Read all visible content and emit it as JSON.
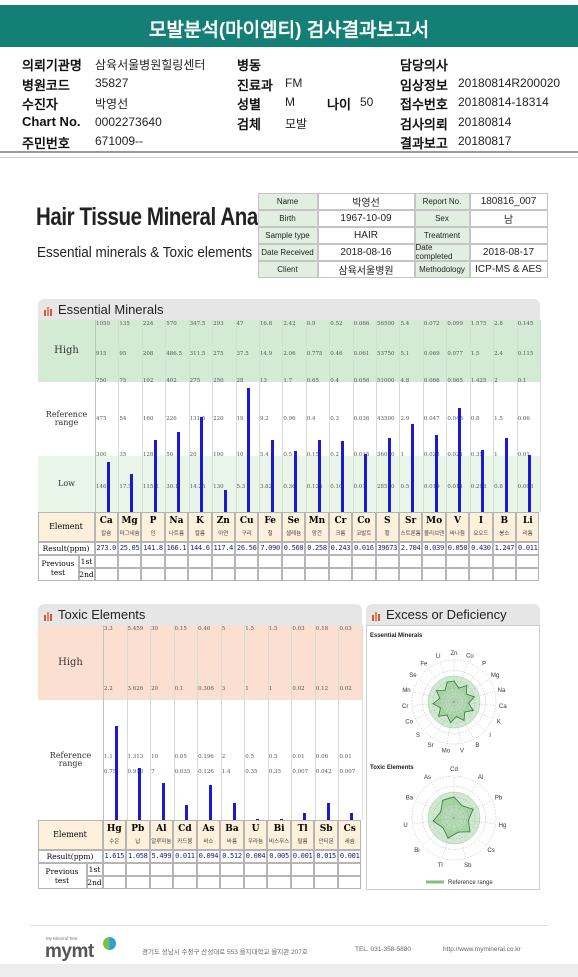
{
  "header": {
    "title": "모발분석(마이엠티) 검사결과보고서"
  },
  "info": [
    {
      "c1": {
        "label": "의뢰기관명",
        "value": "삼육서울병원힐링센터"
      },
      "c2": {
        "label": "병동"
      },
      "c3": {
        "label": "담당의사"
      }
    },
    {
      "c1": {
        "label": "병원코드",
        "value": "35827"
      },
      "c2": {
        "label": "진료과",
        "value": "FM"
      },
      "c3": {
        "label": "임상정보",
        "value": "20180814R200020"
      }
    },
    {
      "c1": {
        "label": "수진자",
        "value": "박영선"
      },
      "c2": {
        "label": "성별",
        "value": "M",
        "extra_label": "나이",
        "extra_value": "50"
      },
      "c3": {
        "label": "접수번호",
        "value": "20180814-18314"
      }
    },
    {
      "c1": {
        "label": "Chart No.",
        "value": "0002273640"
      },
      "c2": {
        "label": "검체",
        "value": "모발"
      },
      "c3": {
        "label": "검사의뢰",
        "value": "20180814"
      }
    },
    {
      "c1": {
        "label": "주민번호",
        "value": "671009--"
      },
      "c3": {
        "label": "결과보고",
        "value": "20180817"
      }
    }
  ],
  "report": {
    "title": "Hair Tissue Mineral Analysis",
    "subtitle": "Essential minerals & Toxic elements",
    "patient": [
      [
        "Name",
        "박영선",
        "Report No.",
        "180816_007"
      ],
      [
        "Birth",
        "1967-10-09",
        "Sex",
        "남"
      ],
      [
        "Sample type",
        "HAIR",
        "Treatment"
      ],
      [
        "Date Received",
        "2018-08-16",
        "Date completed",
        "2018-08-17"
      ],
      [
        "Client",
        "삼육서울병원",
        "Methodology",
        "ICP-MS & AES"
      ]
    ]
  },
  "essential": {
    "title": "Essential Minerals",
    "zones": [
      "High",
      "Reference range",
      "Low"
    ],
    "element_header": "Element",
    "result_header": "Result(ppm)",
    "previous_header": "Previous test",
    "previous_rows": [
      "1st",
      "2nd"
    ],
    "elements": [
      "Ca",
      "Mg",
      "P",
      "Na",
      "K",
      "Zn",
      "Cu",
      "Fe",
      "Se",
      "Mn",
      "Cr",
      "Co",
      "S",
      "Sr",
      "Mo",
      "V",
      "I",
      "B",
      "Li"
    ],
    "names": [
      "칼슘",
      "마그네슘",
      "인",
      "나트륨",
      "칼륨",
      "아연",
      "구리",
      "철",
      "셀레늄",
      "망간",
      "크롬",
      "코발트",
      "황",
      "스트론튬",
      "몰리브덴",
      "바나듐",
      "요오드",
      "붕소",
      "리튬"
    ],
    "values": [
      273,
      25.05,
      141.8,
      166.1,
      144.6,
      117.4,
      26.56,
      7.09,
      0.56,
      0.258,
      0.243,
      0.016,
      39673,
      2.704,
      0.039,
      0.05,
      0.43,
      1.247,
      0.011
    ],
    "value_labels": [
      "273.0",
      "25.05",
      "141.8",
      "166.1",
      "144.6",
      "117.4",
      "26.56",
      "7.090",
      "0.560",
      "0.258",
      "0.243",
      "0.016",
      "39673",
      "2.704",
      "0.039",
      "0.050",
      "0.430",
      "1.247",
      "0.011"
    ],
    "scale": [
      [
        1050,
        915,
        750,
        475,
        300,
        146
      ],
      [
        135,
        95,
        75,
        54,
        35,
        17.5
      ],
      [
        224,
        208,
        192,
        160,
        128,
        115.2
      ],
      [
        570,
        486.5,
        402,
        226,
        50,
        30.1
      ],
      [
        347.5,
        311.5,
        275,
        131.5,
        20,
        14.25
      ],
      [
        293,
        275,
        250,
        220,
        190,
        130
      ],
      [
        47,
        37.5,
        28,
        19,
        10,
        5.3
      ],
      [
        16.8,
        14.9,
        13,
        9.2,
        5.4,
        3.82
      ],
      [
        2.42,
        2.06,
        1.7,
        0.96,
        0.5,
        0.36
      ],
      [
        0.9,
        0.775,
        0.65,
        0.4,
        0.15,
        0.125
      ],
      [
        0.52,
        0.46,
        0.4,
        0.3,
        0.2,
        0.16
      ],
      [
        0.066,
        0.061,
        0.056,
        0.036,
        0.015,
        0.01
      ],
      [
        56500,
        53750,
        51000,
        43500,
        36000,
        28550
      ],
      [
        5.4,
        5.1,
        4.8,
        2.9,
        1,
        0.5
      ],
      [
        0.072,
        0.069,
        0.066,
        0.047,
        0.028,
        0.019
      ],
      [
        0.099,
        0.077,
        0.065,
        0.043,
        0.021,
        0.011
      ],
      [
        1.575,
        1.5,
        1.425,
        0.8,
        0.35,
        0.298
      ],
      [
        2.8,
        2.4,
        2,
        1.5,
        1,
        0.8
      ],
      [
        0.145,
        0.115,
        0.1,
        0.06,
        0.01,
        0.008
      ]
    ],
    "bar_color": "#1a1ad6"
  },
  "toxic": {
    "title": "Toxic Elements",
    "zones": [
      "High",
      "Reference range"
    ],
    "element_header": "Element",
    "result_header": "Result(ppm)",
    "previous_header": "Previous test",
    "previous_rows": [
      "1st",
      "2nd"
    ],
    "elements": [
      "Hg",
      "Pb",
      "Al",
      "Cd",
      "As",
      "Ba",
      "U",
      "Bi",
      "Tl",
      "Sb",
      "Cs"
    ],
    "names": [
      "수은",
      "납",
      "알루미늄",
      "카드뮴",
      "비소",
      "바륨",
      "우라늄",
      "비스무스",
      "탈륨",
      "안티몬",
      "세슘"
    ],
    "values": [
      1.615,
      1.058,
      5.499,
      0.011,
      0.094,
      0.512,
      0.004,
      0.005,
      0.001,
      0.015,
      0.001
    ],
    "value_labels": [
      "1.615",
      "1.058",
      "5.499",
      "0.011",
      "0.094",
      "0.512",
      "0.004",
      "0.005",
      "0.001",
      "0.015",
      "0.001"
    ],
    "scale": [
      [
        3.3,
        2.2,
        1.1,
        0.75
      ],
      [
        5.459,
        3.626,
        1.313,
        0.913
      ],
      [
        30,
        20,
        10,
        7
      ],
      [
        0.15,
        0.1,
        0.05,
        0.035
      ],
      [
        0.46,
        0.306,
        0.196,
        0.126
      ],
      [
        5,
        3,
        2,
        1.4
      ],
      [
        1.5,
        1,
        0.5,
        0.35
      ],
      [
        1.5,
        1,
        0.5,
        0.35
      ],
      [
        0.03,
        0.02,
        0.01,
        0.007
      ],
      [
        0.18,
        0.12,
        0.06,
        0.042
      ],
      [
        0.03,
        0.02,
        0.01,
        0.007
      ]
    ],
    "bar_color": "#1a1ad6"
  },
  "excess": {
    "title": "Excess or Deficiency",
    "essential_title": "Essential Minerals",
    "essential_labels": [
      "Zn",
      "Cu",
      "P",
      "Mg",
      "Na",
      "Ca",
      "K",
      "I",
      "B",
      "V",
      "Mo",
      "Sr",
      "S",
      "Co",
      "Cr",
      "Mn",
      "Se",
      "Fe",
      "Li"
    ],
    "toxic_title": "Toxic Elements",
    "toxic_labels": [
      "Cd",
      "Al",
      "Pb",
      "Hg",
      "Cs",
      "Sb",
      "Tl",
      "Bi",
      "U",
      "Ba",
      "As"
    ],
    "legend": "Reference range"
  },
  "footer": {
    "logo_sub": "My Mineral Test",
    "logo": "mymt",
    "address": "경기도 성남시 수정구 산성대로 553 을지대학교 을지관 207호",
    "tel": "TEL. 031-358-5880",
    "url": "http://www.mymineral.co.kr"
  }
}
